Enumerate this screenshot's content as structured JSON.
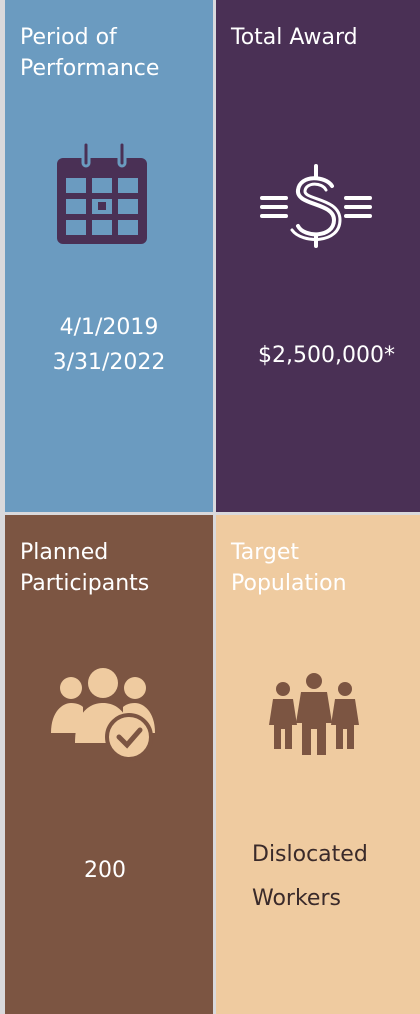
{
  "tiles": [
    {
      "title": [
        "Period of",
        "Performance"
      ],
      "value": [
        "4/1/2019",
        "3/31/2022"
      ]
    },
    {
      "title": [
        "Total Award"
      ],
      "value": [
        "$2,500,000*"
      ]
    },
    {
      "title": [
        "Planned",
        "Participants"
      ],
      "value": [
        "200"
      ]
    },
    {
      "title": [
        "Target",
        "Population"
      ],
      "value": [
        "Dislocated",
        "Workers"
      ]
    }
  ]
}
